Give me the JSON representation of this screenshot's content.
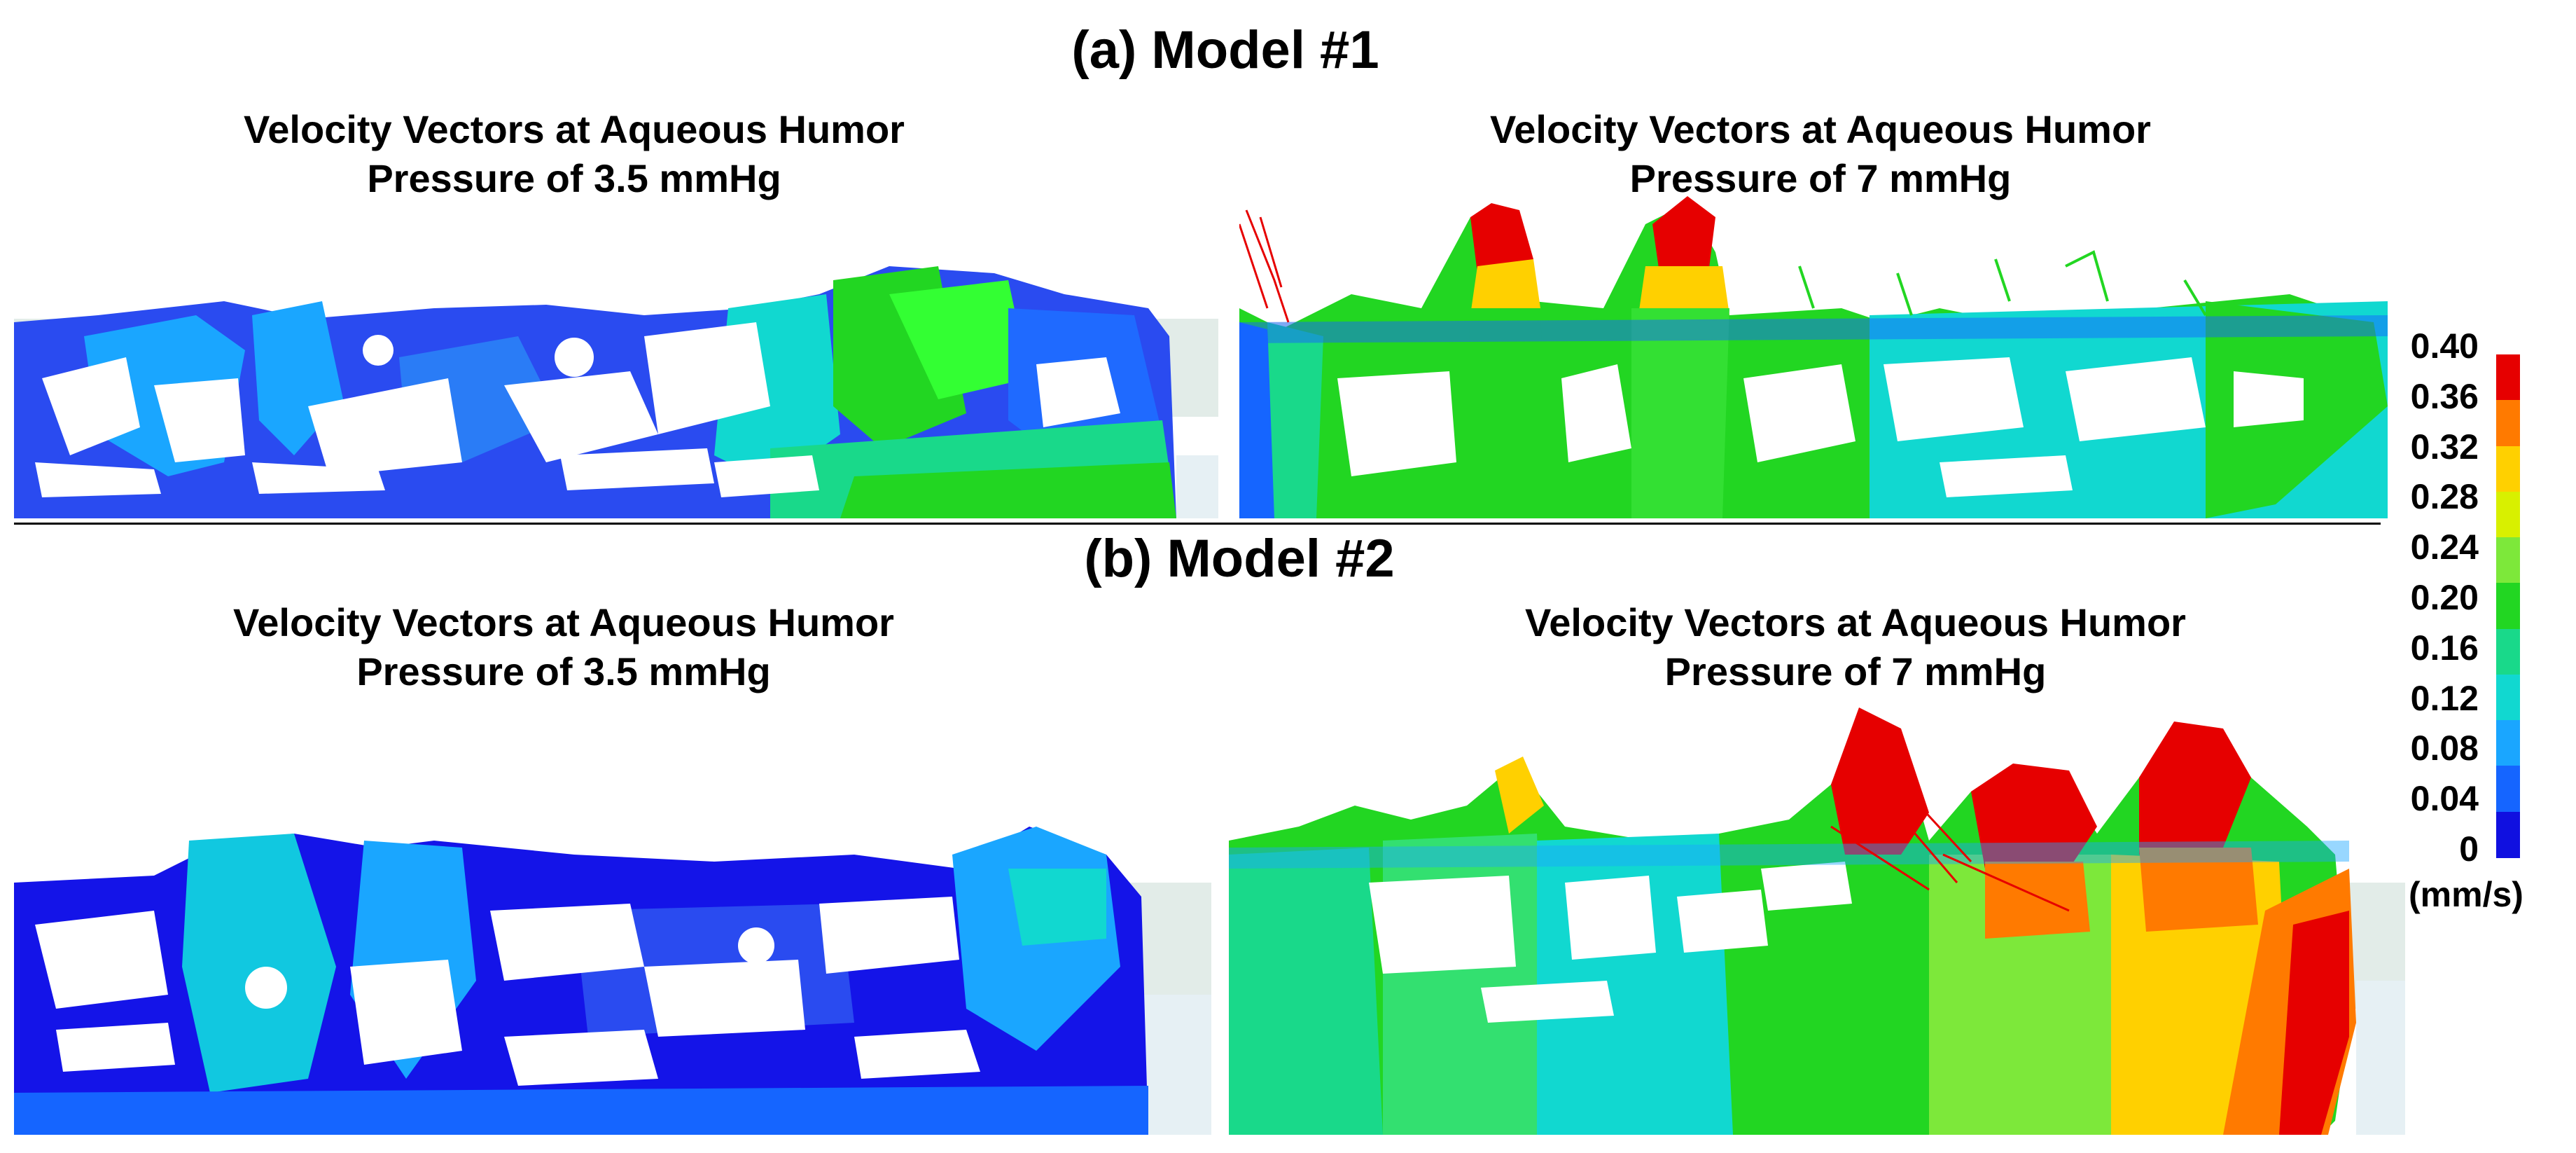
{
  "sections": [
    {
      "title": "(a) Model #1",
      "panels": [
        {
          "line1": "Velocity Vectors at Aqueous Humor",
          "line2": "Pressure of 3.5 mmHg"
        },
        {
          "line1": "Velocity Vectors at Aqueous Humor",
          "line2": "Pressure of 7 mmHg"
        }
      ]
    },
    {
      "title": "(b) Model #2",
      "panels": [
        {
          "line1": "Velocity Vectors at Aqueous Humor",
          "line2": "Pressure of 3.5 mmHg"
        },
        {
          "line1": "Velocity Vectors at Aqueous Humor",
          "line2": "Pressure of 7 mmHg"
        }
      ]
    }
  ],
  "colorbar": {
    "ticks": [
      "0.40",
      "0.36",
      "0.32",
      "0.28",
      "0.24",
      "0.20",
      "0.16",
      "0.12",
      "0.08",
      "0.04",
      "0"
    ],
    "unit": "(mm/s)",
    "colors": [
      "#e60000",
      "#ff7a00",
      "#ffd000",
      "#d8f000",
      "#7de83a",
      "#22d622",
      "#19d98a",
      "#11d8d0",
      "#1aa6ff",
      "#1565ff",
      "#1010e0"
    ]
  }
}
